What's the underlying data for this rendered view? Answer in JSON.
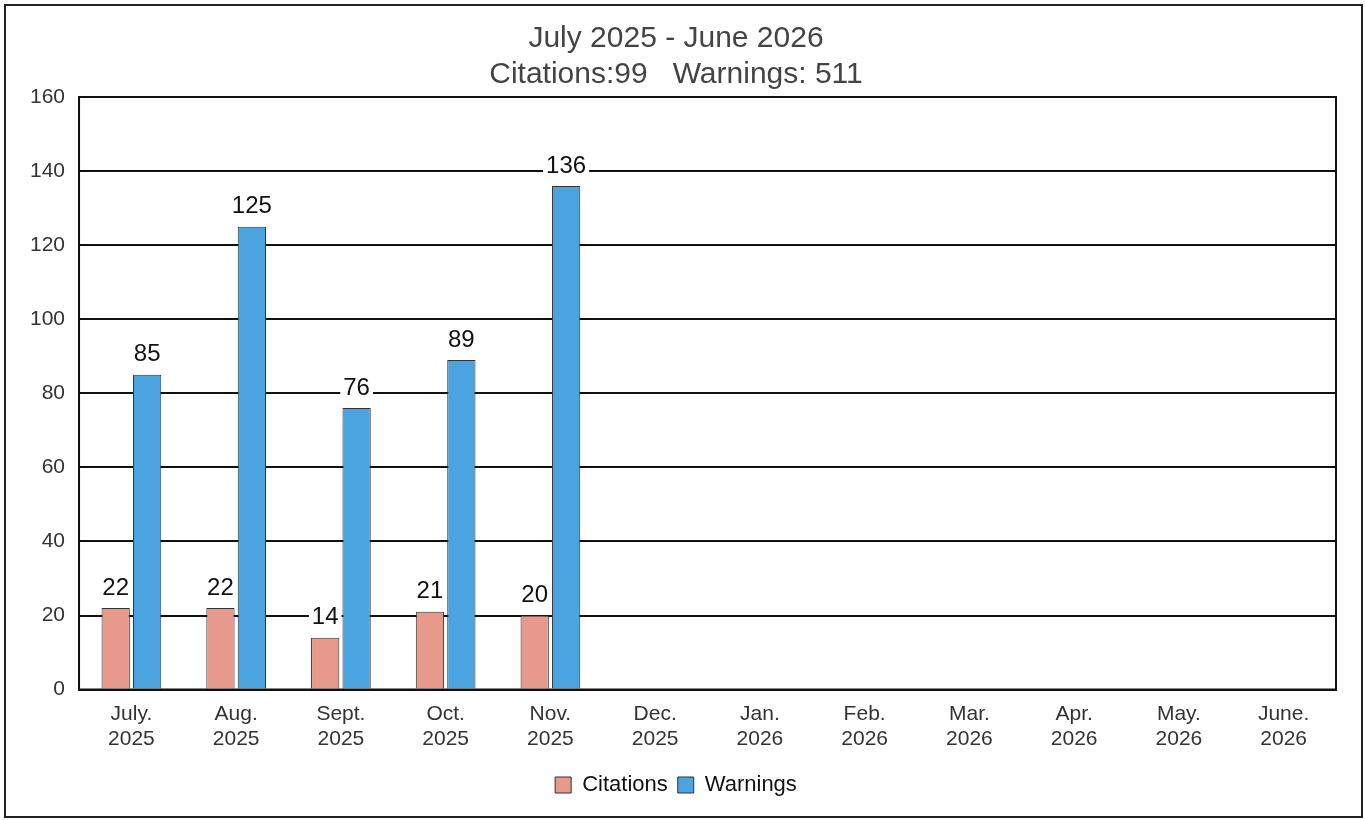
{
  "chart_data": {
    "type": "bar",
    "title": "July 2025 - June 2026",
    "subtitle": "Citations:99   Warnings: 511",
    "categories": [
      "July. 2025",
      "Aug. 2025",
      "Sept. 2025",
      "Oct. 2025",
      "Nov. 2025",
      "Dec. 2025",
      "Jan. 2026",
      "Feb. 2026",
      "Mar. 2026",
      "Apr. 2026",
      "May. 2026",
      "June. 2026"
    ],
    "series": [
      {
        "name": "Citations",
        "color": "#e79a8c",
        "values": [
          22,
          22,
          14,
          21,
          20,
          null,
          null,
          null,
          null,
          null,
          null,
          null
        ]
      },
      {
        "name": "Warnings",
        "color": "#4ba3e0",
        "values": [
          85,
          125,
          76,
          89,
          136,
          null,
          null,
          null,
          null,
          null,
          null,
          null
        ]
      }
    ],
    "ylim": [
      0,
      160
    ],
    "yticks": [
      0,
      20,
      40,
      60,
      80,
      100,
      120,
      140,
      160
    ],
    "grid": "y",
    "legend": "bottom",
    "data_labels": true
  }
}
